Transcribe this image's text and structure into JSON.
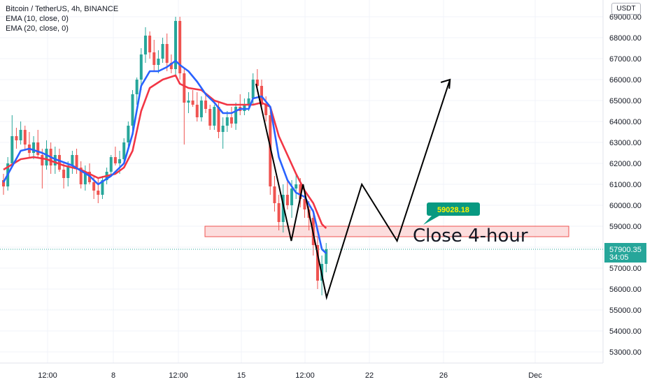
{
  "legend": {
    "title": "Bitcoin / TetherUS, 4h, BINANCE",
    "ema10": "EMA (10, close, 0)",
    "ema20": "EMA (20, close, 0)"
  },
  "currency": "USDT",
  "colors": {
    "up": "#26a69a",
    "down": "#ef5350",
    "ema10": "#2962ff",
    "ema20": "#f23645",
    "zone_fill": "#fbd2d2",
    "zone_stroke": "#ef5350",
    "price_label": "#26a69a",
    "badge": "#089981"
  },
  "chart_data": {
    "type": "candlestick",
    "ylim": [
      52300,
      69800
    ],
    "y_ticks": [
      "53000.00",
      "54000.00",
      "55000.00",
      "56000.00",
      "57000.00",
      "58000.00",
      "59000.00",
      "60000.00",
      "61000.00",
      "62000.00",
      "63000.00",
      "64000.00",
      "65000.00",
      "66000.00",
      "67000.00",
      "68000.00",
      "69000.00"
    ],
    "x_ticks": [
      "12:00",
      "8",
      "12:00",
      "15",
      "12:00",
      "22",
      "26",
      "Dec"
    ],
    "last_price": "57900.35",
    "countdown": "34:05",
    "zone": {
      "low": 58500,
      "high": 59000
    },
    "annotation": "Close 4-hour",
    "badge": "59028.18",
    "projection_path": [
      {
        "x": "Nov 15 20:00",
        "y": 65800
      },
      {
        "x": "Nov 17 20:00",
        "y": 58300
      },
      {
        "x": "Nov 18 12:00",
        "y": 61000
      },
      {
        "x": "Nov 19 20:00",
        "y": 55600
      },
      {
        "x": "Nov 21 20:00",
        "y": 61000
      },
      {
        "x": "Nov 23 20:00",
        "y": 58300
      },
      {
        "x": "Nov 26 20:00",
        "y": 66000
      }
    ],
    "ohlc": [
      [
        61200,
        61500,
        60500,
        60900
      ],
      [
        60900,
        62300,
        60700,
        62000
      ],
      [
        62000,
        64300,
        61900,
        63300
      ],
      [
        63300,
        63700,
        62700,
        63100
      ],
      [
        63100,
        64000,
        62900,
        63600
      ],
      [
        63600,
        63800,
        62600,
        62900
      ],
      [
        62900,
        63500,
        62300,
        62500
      ],
      [
        62500,
        63300,
        62200,
        63000
      ],
      [
        63000,
        63600,
        62300,
        62400
      ],
      [
        62400,
        62700,
        60800,
        61900
      ],
      [
        61900,
        63100,
        61700,
        62700
      ],
      [
        62700,
        63000,
        61500,
        61900
      ],
      [
        61900,
        62800,
        61500,
        62400
      ],
      [
        62400,
        62700,
        61600,
        61700
      ],
      [
        61700,
        62000,
        60800,
        61300
      ],
      [
        61300,
        62100,
        60900,
        61900
      ],
      [
        61900,
        62600,
        61500,
        62400
      ],
      [
        62400,
        62700,
        61500,
        61800
      ],
      [
        61800,
        62100,
        60800,
        61000
      ],
      [
        61000,
        61900,
        60700,
        61600
      ],
      [
        61600,
        62000,
        61000,
        61100
      ],
      [
        61100,
        61400,
        60300,
        60700
      ],
      [
        60700,
        61300,
        60100,
        60500
      ],
      [
        60500,
        61400,
        60300,
        61200
      ],
      [
        61200,
        61800,
        61000,
        61600
      ],
      [
        61600,
        62400,
        61400,
        62300
      ],
      [
        62300,
        62800,
        61900,
        62000
      ],
      [
        62000,
        62600,
        61500,
        62200
      ],
      [
        62200,
        63200,
        62000,
        63000
      ],
      [
        63000,
        64000,
        62800,
        63800
      ],
      [
        63800,
        65500,
        63500,
        65300
      ],
      [
        65300,
        66100,
        64800,
        66000
      ],
      [
        66000,
        67500,
        65500,
        67200
      ],
      [
        67200,
        68500,
        66800,
        68100
      ],
      [
        68100,
        68300,
        67000,
        67300
      ],
      [
        67300,
        67900,
        66400,
        66700
      ],
      [
        66700,
        67400,
        66300,
        67000
      ],
      [
        67000,
        68000,
        66800,
        67700
      ],
      [
        67700,
        68200,
        66400,
        66800
      ],
      [
        66800,
        67200,
        66300,
        66500
      ],
      [
        66500,
        69000,
        66200,
        68800
      ],
      [
        68800,
        69000,
        66000,
        66300
      ],
      [
        66300,
        66500,
        62900,
        64900
      ],
      [
        64900,
        65400,
        64400,
        65000
      ],
      [
        65000,
        65500,
        64700,
        64800
      ],
      [
        64800,
        65400,
        64000,
        64200
      ],
      [
        64200,
        65200,
        64000,
        65000
      ],
      [
        65000,
        65300,
        64400,
        64600
      ],
      [
        64600,
        64800,
        63600,
        63800
      ],
      [
        63800,
        64800,
        63600,
        64700
      ],
      [
        64700,
        64900,
        63200,
        63500
      ],
      [
        63500,
        64200,
        62700,
        63800
      ],
      [
        63800,
        64500,
        63500,
        64200
      ],
      [
        64200,
        64700,
        63700,
        63900
      ],
      [
        63900,
        64900,
        63600,
        64700
      ],
      [
        64700,
        65300,
        64300,
        64500
      ],
      [
        64500,
        65100,
        64300,
        64800
      ],
      [
        64800,
        65400,
        64500,
        65100
      ],
      [
        65100,
        66300,
        64800,
        66000
      ],
      [
        66000,
        66500,
        65400,
        65700
      ],
      [
        65700,
        66000,
        64600,
        64800
      ],
      [
        64800,
        65200,
        64000,
        64300
      ],
      [
        64300,
        64500,
        60500,
        60900
      ],
      [
        60900,
        61400,
        59700,
        60100
      ],
      [
        60100,
        60500,
        58800,
        59200
      ],
      [
        59200,
        61000,
        58700,
        60500
      ],
      [
        60500,
        61200,
        59800,
        60000
      ],
      [
        60000,
        61200,
        59400,
        60800
      ],
      [
        60800,
        61500,
        60300,
        61000
      ],
      [
        61000,
        61300,
        59900,
        60300
      ],
      [
        60300,
        60500,
        59400,
        59800
      ],
      [
        59800,
        60200,
        58800,
        59400
      ],
      [
        59400,
        59800,
        57600,
        58100
      ],
      [
        58100,
        58500,
        56000,
        56400
      ],
      [
        56400,
        57600,
        55700,
        57200
      ],
      [
        57200,
        58200,
        56800,
        57900
      ]
    ],
    "ema10_points": [
      [
        0,
        61100
      ],
      [
        4,
        62600
      ],
      [
        6,
        62700
      ],
      [
        9,
        62500
      ],
      [
        12,
        62200
      ],
      [
        16,
        61900
      ],
      [
        20,
        61400
      ],
      [
        22,
        61000
      ],
      [
        25,
        61400
      ],
      [
        28,
        62000
      ],
      [
        30,
        63400
      ],
      [
        32,
        65700
      ],
      [
        34,
        66400
      ],
      [
        36,
        66400
      ],
      [
        38,
        66600
      ],
      [
        40,
        66900
      ],
      [
        41,
        66700
      ],
      [
        43,
        66400
      ],
      [
        45,
        65900
      ],
      [
        47,
        65300
      ],
      [
        49,
        64900
      ],
      [
        51,
        64400
      ],
      [
        53,
        64400
      ],
      [
        55,
        64600
      ],
      [
        57,
        64600
      ],
      [
        58,
        65100
      ],
      [
        60,
        65200
      ],
      [
        62,
        64700
      ],
      [
        64,
        62300
      ],
      [
        66,
        61200
      ],
      [
        68,
        60600
      ],
      [
        70,
        60400
      ],
      [
        72,
        59700
      ],
      [
        73,
        58800
      ],
      [
        74,
        57900
      ],
      [
        75,
        57700
      ]
    ],
    "ema20_points": [
      [
        0,
        61700
      ],
      [
        4,
        62200
      ],
      [
        7,
        62300
      ],
      [
        10,
        62200
      ],
      [
        14,
        61900
      ],
      [
        18,
        61700
      ],
      [
        22,
        61300
      ],
      [
        26,
        61500
      ],
      [
        28,
        61800
      ],
      [
        30,
        62600
      ],
      [
        32,
        64500
      ],
      [
        34,
        65600
      ],
      [
        37,
        66000
      ],
      [
        40,
        66200
      ],
      [
        41,
        65800
      ],
      [
        43,
        65600
      ],
      [
        46,
        65500
      ],
      [
        49,
        65000
      ],
      [
        52,
        64800
      ],
      [
        55,
        64800
      ],
      [
        58,
        64800
      ],
      [
        60,
        64900
      ],
      [
        62,
        64700
      ],
      [
        64,
        63300
      ],
      [
        66,
        62400
      ],
      [
        68,
        61500
      ],
      [
        70,
        60700
      ],
      [
        72,
        60100
      ],
      [
        74,
        59100
      ],
      [
        75,
        58900
      ]
    ]
  }
}
